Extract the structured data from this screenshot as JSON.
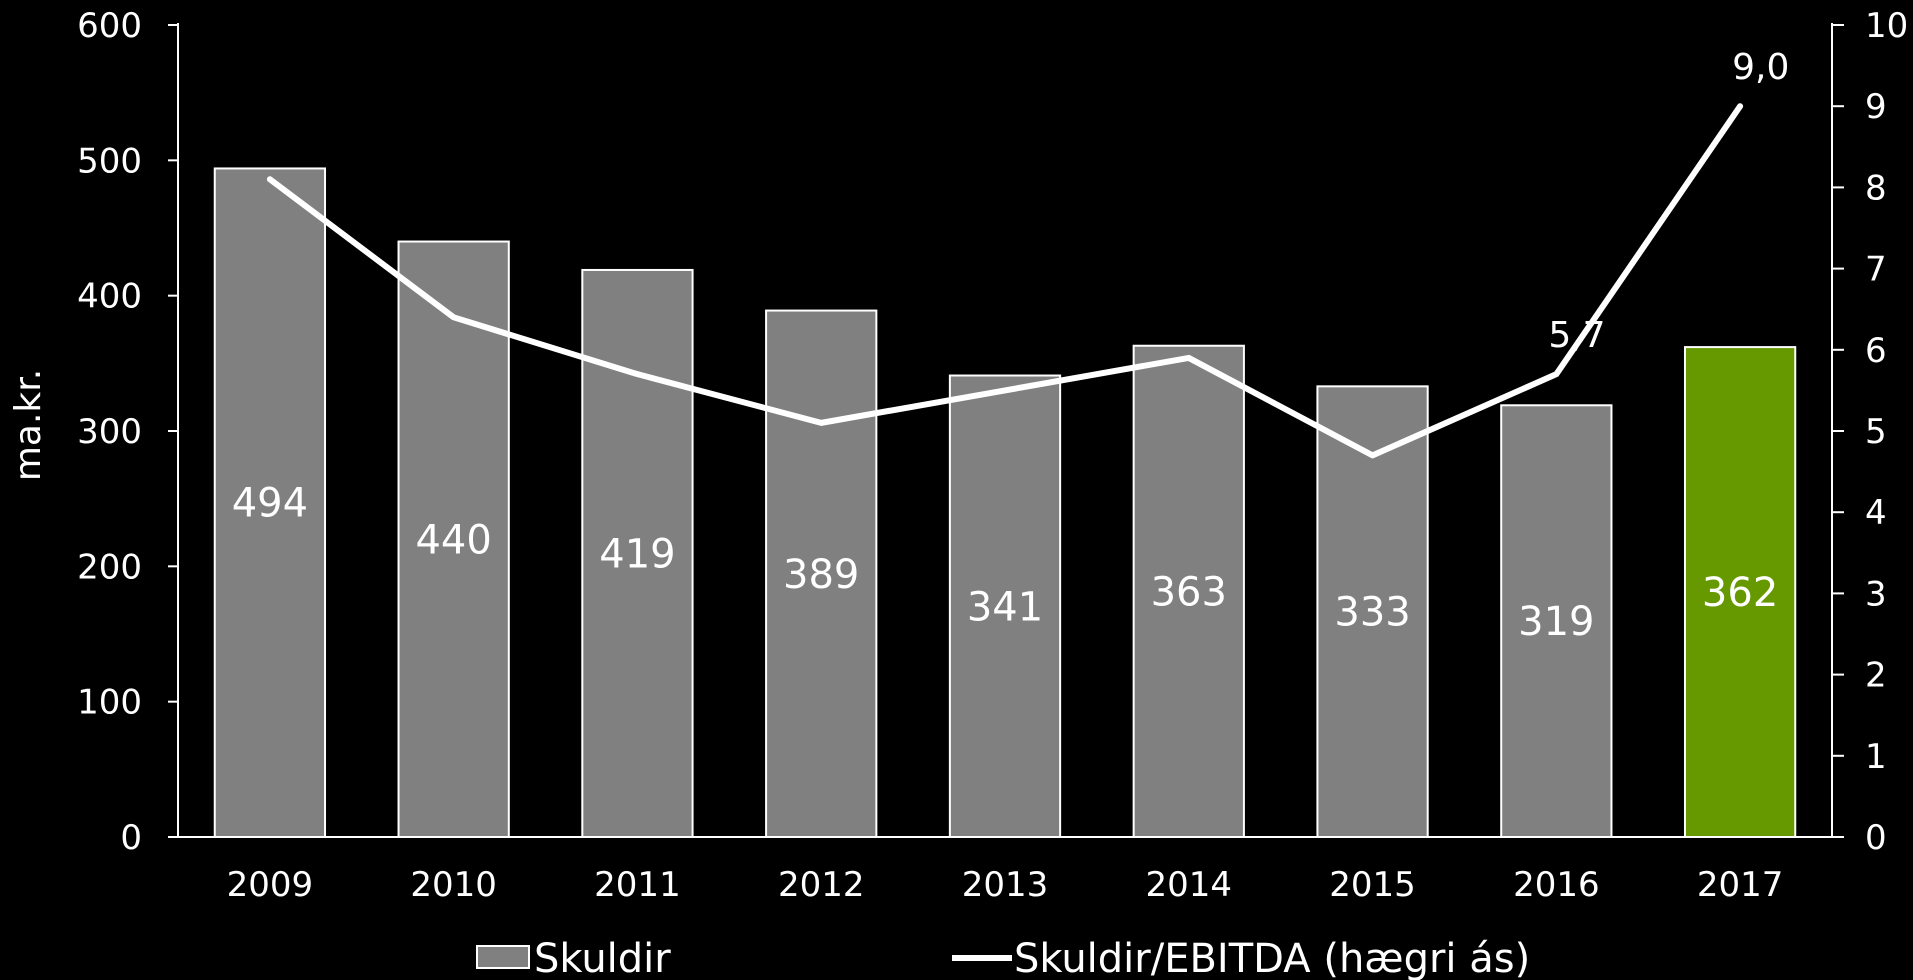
{
  "chart_data": {
    "type": "bar",
    "categories": [
      "2009",
      "2010",
      "2011",
      "2012",
      "2013",
      "2014",
      "2015",
      "2016",
      "2017"
    ],
    "series": [
      {
        "name": "Skuldir",
        "type": "bar",
        "axis": "left",
        "values": [
          494,
          440,
          419,
          389,
          341,
          363,
          333,
          319,
          362
        ],
        "data_labels": [
          "494",
          "440",
          "419",
          "389",
          "341",
          "363",
          "333",
          "319",
          "362"
        ]
      },
      {
        "name": "Skuldir/EBITDA (hægri ás)",
        "type": "line",
        "axis": "right",
        "values": [
          8.1,
          6.4,
          5.7,
          5.1,
          5.5,
          5.9,
          4.7,
          5.7,
          9.0
        ],
        "point_labels": [
          "",
          "",
          "",
          "",
          "",
          "",
          "",
          "5,7",
          "9,0"
        ]
      }
    ],
    "ylabel": "ma.kr.",
    "ylim": [
      0,
      600
    ],
    "yticks": [
      "0",
      "100",
      "200",
      "300",
      "400",
      "500",
      "600"
    ],
    "y2lim": [
      0,
      10
    ],
    "y2ticks": [
      "0",
      "1",
      "2",
      "3",
      "4",
      "5",
      "6",
      "7",
      "8",
      "9",
      "10"
    ],
    "grid": false,
    "legend_position": "bottom",
    "colors": {
      "background": "#000000",
      "bar": "#808080",
      "bar_highlight": "#669900",
      "line": "#ffffff",
      "axis": "#ffffff",
      "text": "#ffffff"
    },
    "highlight_index": 8
  }
}
